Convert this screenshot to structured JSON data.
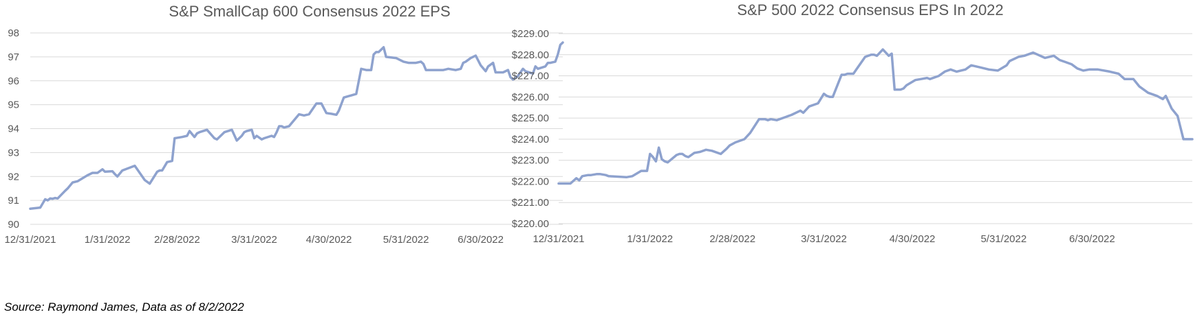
{
  "source": "Source: Raymond James, Data as of 8/2/2022",
  "colors": {
    "line": "#8EA2CE",
    "grid": "#D9D9D9",
    "text": "#595959"
  },
  "chart_data": [
    {
      "type": "line",
      "title": "S&P SmallCap 600 Consensus 2022 EPS",
      "xlabel": "",
      "ylabel": "",
      "grid": true,
      "legend": "none",
      "xlim": [
        0,
        214
      ],
      "ylim": [
        90,
        98
      ],
      "yticks": [
        90,
        91,
        92,
        93,
        94,
        95,
        96,
        97,
        98
      ],
      "ytick_labels": [
        "90",
        "91",
        "92",
        "93",
        "94",
        "95",
        "96",
        "97",
        "98"
      ],
      "xticks": [
        0,
        31,
        59,
        90,
        120,
        151,
        181
      ],
      "xtick_labels": [
        "12/31/2021",
        "1/31/2022",
        "2/28/2022",
        "3/31/2022",
        "4/30/2022",
        "5/31/2022",
        "6/30/2022"
      ],
      "series": [
        {
          "x": [
            0,
            4,
            6,
            7,
            8,
            9,
            10,
            11,
            14,
            15,
            17,
            19,
            23,
            25,
            27,
            29,
            30,
            33,
            34,
            35,
            37,
            42,
            46,
            48,
            51,
            52,
            53,
            55,
            57,
            58,
            61,
            63,
            64,
            66,
            67,
            68,
            71,
            74,
            75,
            77,
            78,
            81,
            83,
            85,
            86,
            87,
            89,
            90,
            91,
            93,
            94,
            97,
            98,
            99,
            100,
            101,
            102,
            104,
            108,
            110,
            112,
            115,
            117,
            119,
            121,
            123,
            124,
            126,
            131,
            133,
            135,
            137,
            138,
            139,
            140,
            141,
            142,
            143,
            147,
            150,
            152,
            155,
            157,
            158,
            159,
            163,
            166,
            168,
            171,
            173,
            174,
            175,
            177,
            179,
            181,
            183,
            184,
            186,
            187,
            190,
            192,
            193,
            194,
            196,
            198,
            199,
            202,
            203,
            204,
            207,
            208,
            209,
            211,
            212,
            213,
            214
          ],
          "values": [
            90.65,
            90.7,
            91.05,
            91.0,
            91.08,
            91.07,
            91.1,
            91.08,
            91.4,
            91.5,
            91.75,
            91.8,
            92.05,
            92.15,
            92.15,
            92.3,
            92.2,
            92.22,
            92.1,
            92.0,
            92.25,
            92.45,
            91.85,
            91.7,
            92.2,
            92.25,
            92.25,
            92.6,
            92.65,
            93.6,
            93.65,
            93.7,
            93.9,
            93.65,
            93.8,
            93.85,
            93.95,
            93.6,
            93.55,
            93.75,
            93.85,
            93.95,
            93.5,
            93.7,
            93.85,
            93.9,
            93.95,
            93.6,
            93.7,
            93.55,
            93.6,
            93.7,
            93.65,
            93.85,
            94.1,
            94.1,
            94.05,
            94.1,
            94.6,
            94.55,
            94.6,
            95.05,
            95.05,
            94.65,
            94.62,
            94.58,
            94.75,
            95.3,
            95.45,
            96.5,
            96.45,
            96.45,
            97.1,
            97.2,
            97.2,
            97.3,
            97.4,
            97.0,
            96.95,
            96.8,
            96.75,
            96.75,
            96.8,
            96.7,
            96.45,
            96.45,
            96.45,
            96.5,
            96.45,
            96.5,
            96.75,
            96.8,
            96.95,
            97.05,
            96.65,
            96.4,
            96.6,
            96.75,
            96.35,
            96.35,
            96.45,
            96.15,
            96.05,
            96.2,
            96.5,
            96.4,
            96.3,
            96.6,
            96.5,
            96.6,
            96.75,
            96.75,
            96.8,
            97.1,
            97.5,
            97.6
          ]
        }
      ]
    },
    {
      "type": "line",
      "title": "S&P 500 2022 Consensus EPS In 2022",
      "xlabel": "",
      "ylabel": "",
      "grid": true,
      "legend": "none",
      "xlim": [
        0,
        215
      ],
      "ylim": [
        220,
        229
      ],
      "yticks": [
        220,
        221,
        222,
        223,
        224,
        225,
        226,
        227,
        228,
        229
      ],
      "ytick_labels": [
        "$220.00",
        "$221.00",
        "$222.00",
        "$223.00",
        "$224.00",
        "$225.00",
        "$226.00",
        "$227.00",
        "$228.00",
        "$229.00"
      ],
      "xticks": [
        0,
        31,
        59,
        90,
        120,
        151,
        181
      ],
      "xtick_labels": [
        "12/31/2021",
        "1/31/2022",
        "2/28/2022",
        "3/31/2022",
        "4/30/2022",
        "5/31/2022",
        "6/30/2022"
      ],
      "series": [
        {
          "x": [
            0,
            4,
            6,
            7,
            8,
            10,
            11,
            13,
            14,
            16,
            17,
            23,
            25,
            28,
            30,
            31,
            32,
            33,
            34,
            35,
            36,
            37,
            40,
            41,
            42,
            43,
            44,
            46,
            48,
            50,
            52,
            55,
            57,
            58,
            60,
            63,
            65,
            68,
            70,
            71,
            72,
            74,
            77,
            79,
            82,
            83,
            85,
            87,
            88,
            90,
            91,
            92,
            93,
            96,
            97,
            98,
            100,
            101,
            104,
            106,
            107,
            108,
            110,
            112,
            113,
            114,
            116,
            117,
            118,
            121,
            123,
            125,
            126,
            129,
            131,
            133,
            135,
            138,
            140,
            143,
            146,
            149,
            152,
            153,
            156,
            158,
            161,
            165,
            168,
            170,
            172,
            174,
            176,
            178,
            180,
            183,
            187,
            190,
            192,
            195,
            197,
            200,
            203,
            205,
            206,
            208,
            210,
            212,
            213,
            214,
            215
          ],
          "values": [
            221.9,
            221.9,
            222.15,
            222.05,
            222.25,
            222.3,
            222.3,
            222.35,
            222.35,
            222.3,
            222.25,
            222.2,
            222.25,
            222.5,
            222.5,
            223.3,
            223.15,
            222.95,
            223.6,
            223.05,
            222.95,
            222.9,
            223.25,
            223.3,
            223.3,
            223.2,
            223.15,
            223.35,
            223.4,
            223.5,
            223.45,
            223.3,
            223.55,
            223.7,
            223.85,
            224.0,
            224.3,
            224.95,
            224.95,
            224.9,
            224.95,
            224.9,
            225.05,
            225.15,
            225.35,
            225.25,
            225.55,
            225.65,
            225.7,
            226.15,
            226.05,
            226.0,
            226.0,
            227.05,
            227.05,
            227.1,
            227.1,
            227.3,
            227.9,
            228.0,
            228.0,
            227.95,
            228.25,
            227.95,
            228.05,
            226.35,
            226.35,
            226.4,
            226.55,
            226.8,
            226.85,
            226.9,
            226.85,
            227.0,
            227.2,
            227.3,
            227.2,
            227.3,
            227.5,
            227.4,
            227.3,
            227.25,
            227.5,
            227.7,
            227.9,
            227.95,
            228.1,
            227.85,
            227.95,
            227.75,
            227.65,
            227.55,
            227.35,
            227.25,
            227.3,
            227.3,
            227.2,
            227.1,
            226.85,
            226.85,
            226.5,
            226.2,
            226.05,
            225.9,
            226.05,
            225.45,
            225.1,
            224.0,
            224.0,
            224.0,
            224.0
          ]
        }
      ]
    }
  ]
}
